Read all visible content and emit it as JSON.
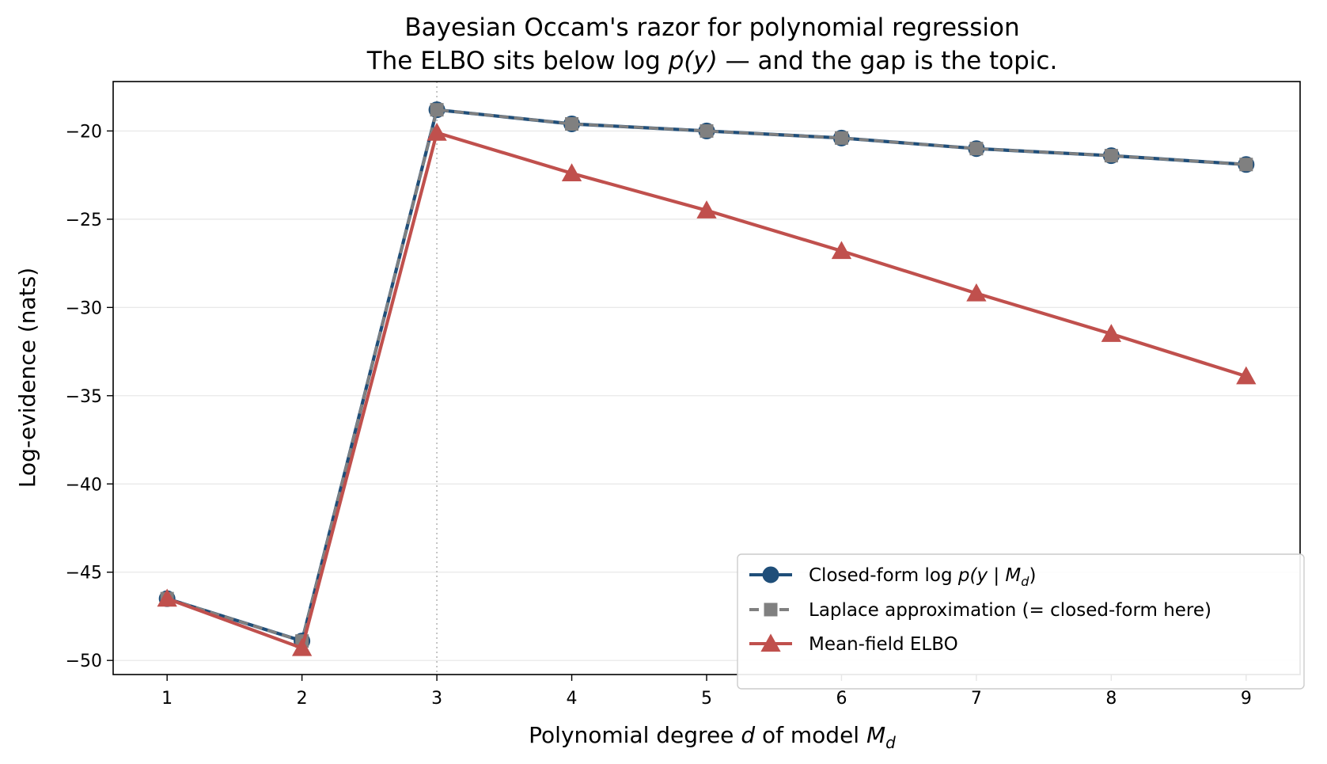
{
  "chart_data": {
    "type": "line",
    "title": "Bayesian Occam's razor for polynomial regression",
    "subtitle": {
      "prefix": "The ELBO sits below log ",
      "math": "p(y)",
      "suffix": " — and the gap is the topic."
    },
    "xlabel": {
      "prefix": "Polynomial degree ",
      "var": "d",
      "middle": " of model ",
      "model": "M",
      "sub": "d"
    },
    "ylabel": "Log-evidence (nats)",
    "x": [
      1,
      2,
      3,
      4,
      5,
      6,
      7,
      8,
      9
    ],
    "xticks": [
      "1",
      "2",
      "3",
      "4",
      "5",
      "6",
      "7",
      "8",
      "9"
    ],
    "yticks": [
      {
        "value": -20,
        "label": "−20"
      },
      {
        "value": -25,
        "label": "−25"
      },
      {
        "value": -30,
        "label": "−30"
      },
      {
        "value": -35,
        "label": "−35"
      },
      {
        "value": -40,
        "label": "−40"
      },
      {
        "value": -45,
        "label": "−45"
      },
      {
        "value": -50,
        "label": "−50"
      }
    ],
    "xlim": [
      0.6,
      9.4
    ],
    "ylim": [
      -50.8,
      -17.2
    ],
    "grid": "horizontal",
    "vline_x": 3,
    "legend_position": "lower-right",
    "series": [
      {
        "key": "closed",
        "name": "Closed-form log p(y | M_d)",
        "legend": {
          "prefix": "Closed-form log ",
          "math": "p(y | M",
          "sub": "d",
          "suffix": ")"
        },
        "color": "#1f4e79",
        "marker": "circle",
        "dash": "solid",
        "values": [
          -46.5,
          -48.9,
          -18.8,
          -19.6,
          -20.0,
          -20.4,
          -21.0,
          -21.4,
          -21.9
        ]
      },
      {
        "key": "laplace",
        "name": "Laplace approximation (= closed-form here)",
        "legend": {
          "prefix": "Laplace approximation (= closed-form here)"
        },
        "color": "#808080",
        "marker": "square",
        "dash": "dashed",
        "values": [
          -46.5,
          -48.9,
          -18.8,
          -19.6,
          -20.0,
          -20.4,
          -21.0,
          -21.4,
          -21.9
        ]
      },
      {
        "key": "elbo",
        "name": "Mean-field ELBO",
        "legend": {
          "prefix": "Mean-field ELBO"
        },
        "color": "#c0504d",
        "marker": "triangle",
        "dash": "solid",
        "values": [
          -46.5,
          -49.3,
          -20.1,
          -22.4,
          -24.5,
          -26.8,
          -29.2,
          -31.5,
          -33.9
        ]
      }
    ]
  }
}
